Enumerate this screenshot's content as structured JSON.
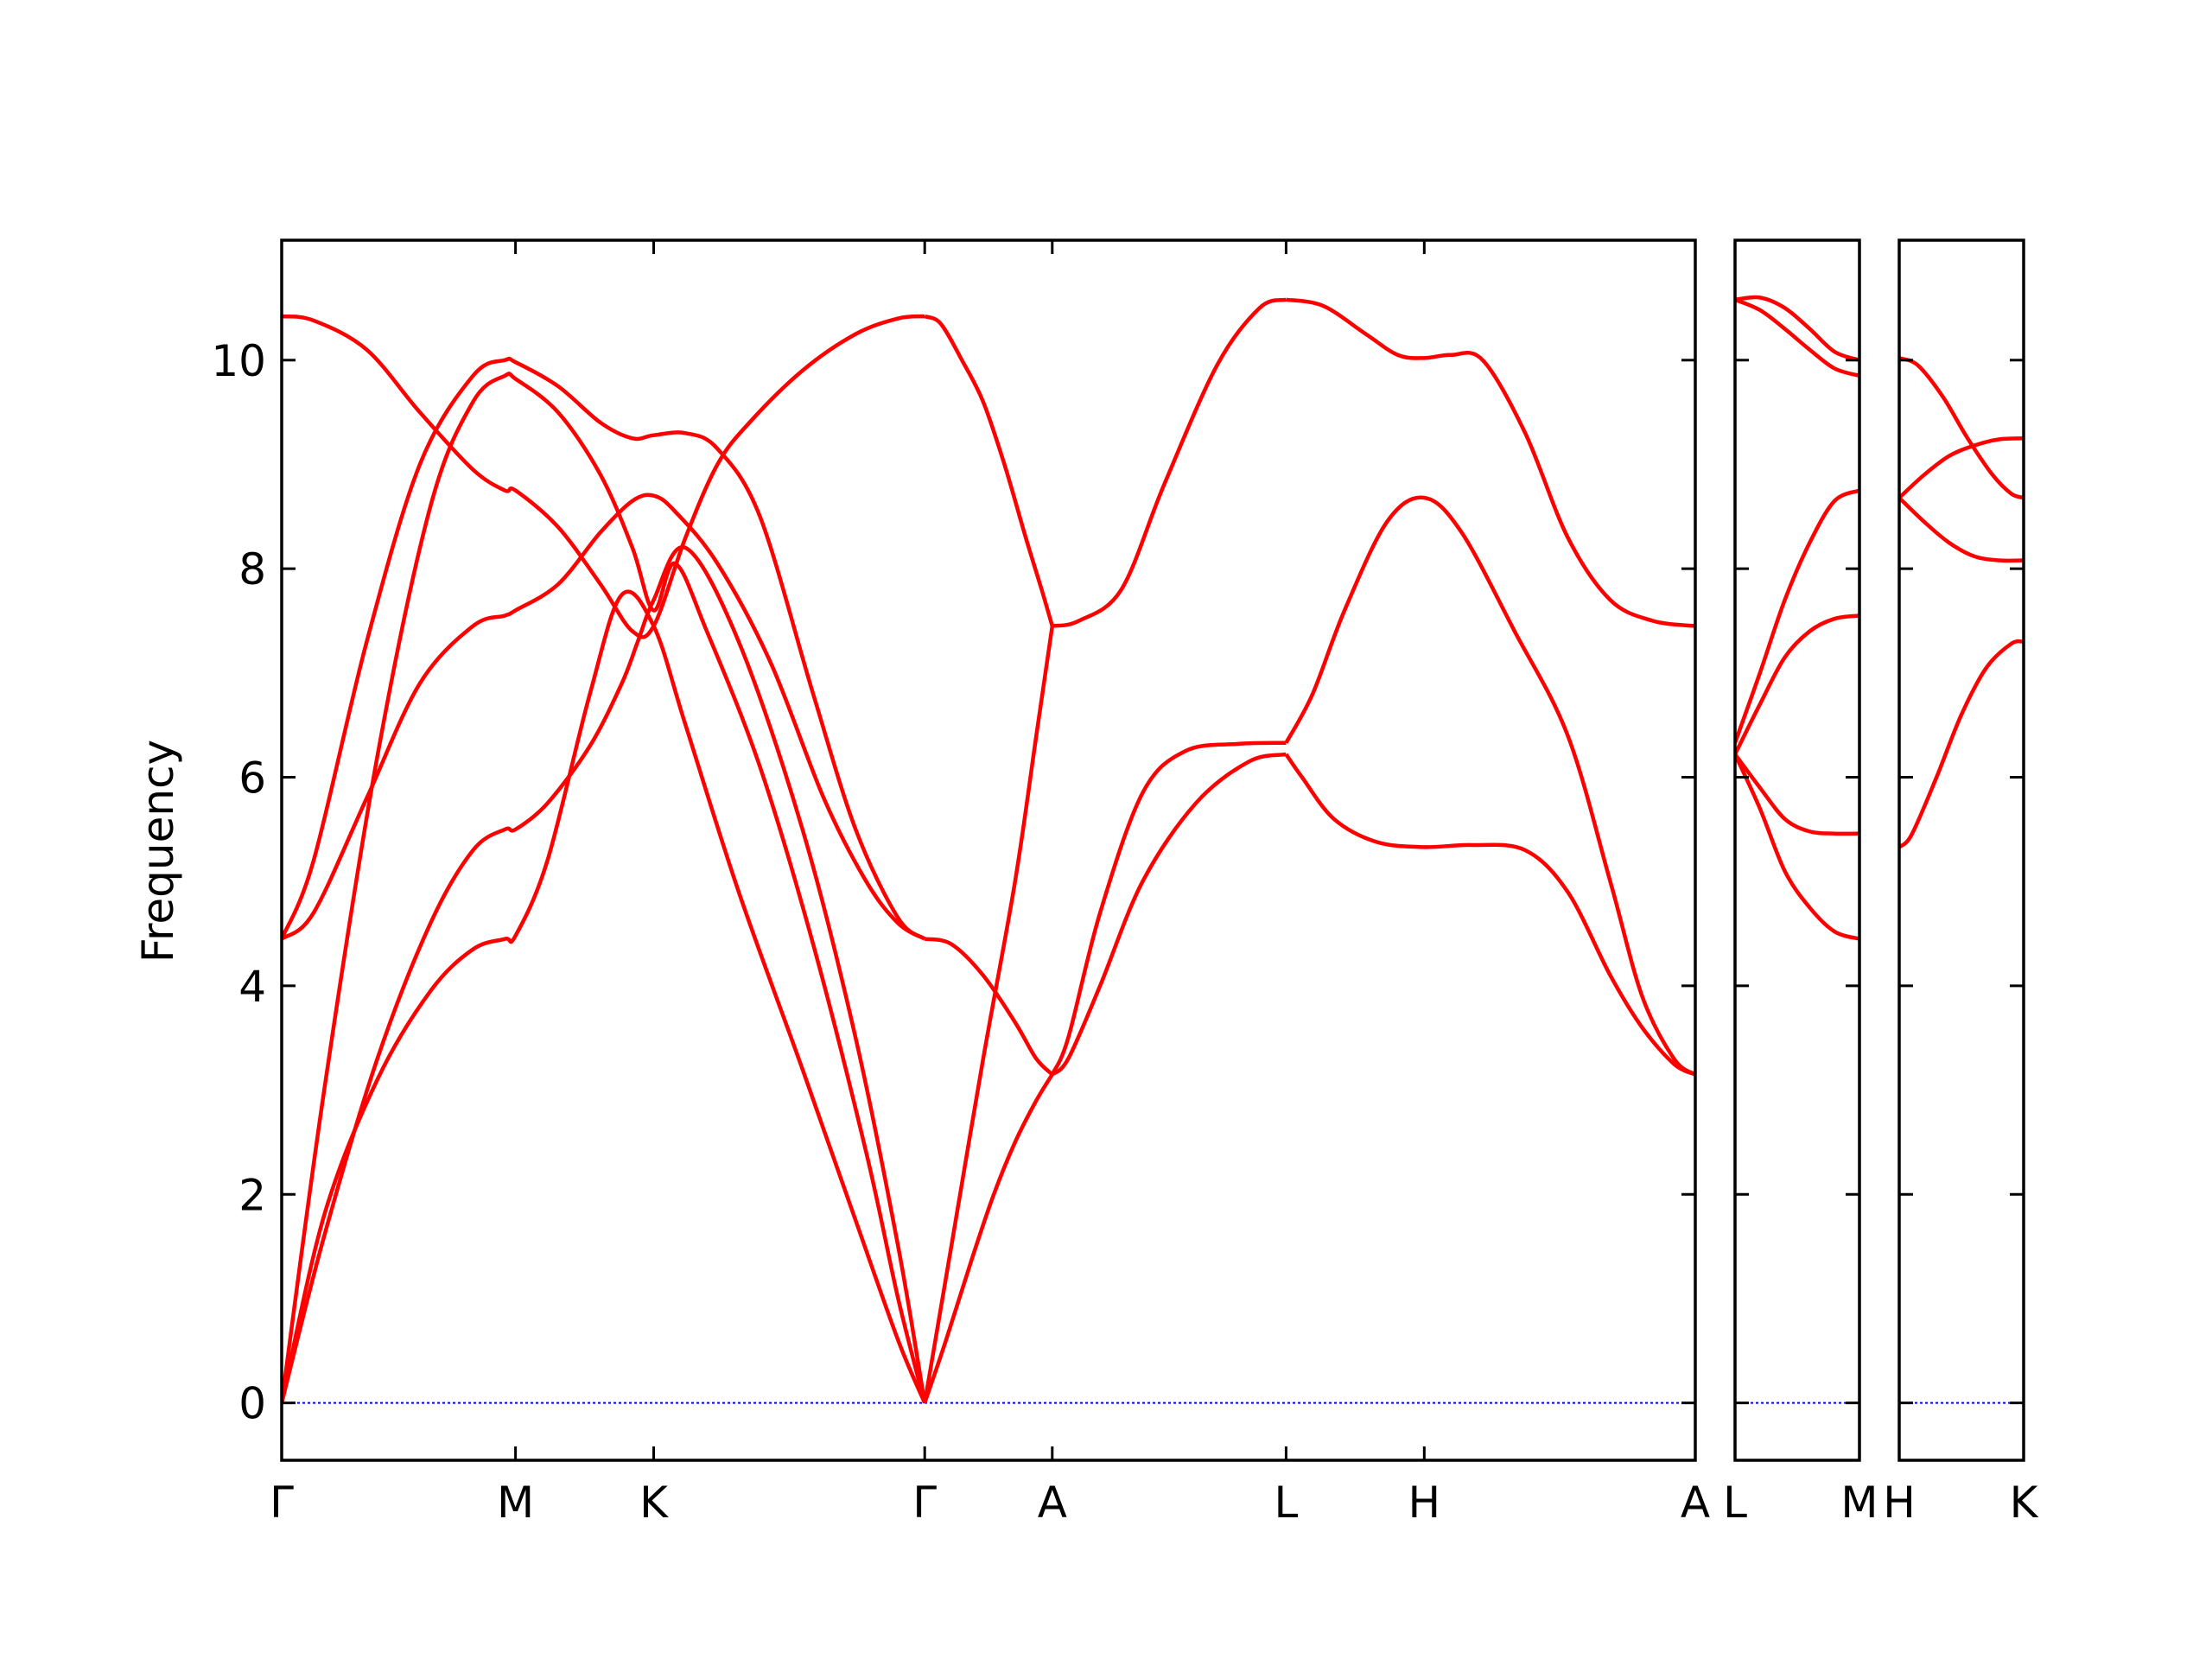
{
  "chart_data": {
    "type": "line",
    "title": "",
    "ylabel": "Frequency",
    "xlabel": "",
    "ylim": [
      -0.55,
      11.15
    ],
    "yticks": [
      0,
      2,
      4,
      6,
      8,
      10
    ],
    "grid": false,
    "legend": "none",
    "colors": {
      "bands": "#ff0000",
      "zero_line": "#0000ff",
      "axes": "#000000"
    },
    "panels": [
      {
        "name": "panel-main",
        "xlim": [
          0,
          13.3
        ],
        "xticks": [
          {
            "pos": 0,
            "label": "Γ"
          },
          {
            "pos": 2.2,
            "label": "M"
          },
          {
            "pos": 3.5,
            "label": "K"
          },
          {
            "pos": 6.05,
            "label": "Γ"
          },
          {
            "pos": 7.25,
            "label": "A"
          },
          {
            "pos": 9.45,
            "label": "L"
          },
          {
            "pos": 10.75,
            "label": "H"
          },
          {
            "pos": 13.3,
            "label": "A"
          }
        ],
        "series": [
          {
            "x": [
              0,
              0.4,
              0.9,
              1.4,
              1.8,
              2.1,
              2.2,
              2.5,
              2.9,
              3.2,
              3.5,
              3.8,
              4.3,
              4.9,
              5.4,
              5.8,
              6.05
            ],
            "y": [
              0,
              1.8,
              3.1,
              3.95,
              4.35,
              4.45,
              4.48,
              5.2,
              6.8,
              7.75,
              7.45,
              6.5,
              4.9,
              3.2,
              1.75,
              0.6,
              0
            ]
          },
          {
            "x": [
              0,
              0.4,
              0.9,
              1.4,
              1.8,
              2.1,
              2.2,
              2.5,
              2.9,
              3.2,
              3.35,
              3.5,
              3.8,
              4.3,
              4.9,
              5.4,
              5.8,
              6.05
            ],
            "y": [
              0,
              1.6,
              3.3,
              4.6,
              5.3,
              5.5,
              5.5,
              5.75,
              6.3,
              6.9,
              7.3,
              7.7,
              8.2,
              7.3,
              5.5,
              3.5,
              1.5,
              0
            ]
          },
          {
            "x": [
              0,
              0.4,
              0.9,
              1.4,
              1.8,
              2.1,
              2.2,
              2.6,
              3.0,
              3.3,
              3.5,
              3.7,
              4.0,
              4.5,
              5.0,
              5.5,
              5.8,
              6.05
            ],
            "y": [
              0,
              3.0,
              6.2,
              8.6,
              9.6,
              9.85,
              9.82,
              9.5,
              8.9,
              8.2,
              7.6,
              8.05,
              7.4,
              6.1,
              4.4,
              2.4,
              1.0,
              0
            ]
          },
          {
            "x": [
              0,
              0.3,
              0.8,
              1.3,
              1.8,
              2.1,
              2.2,
              2.6,
              3.0,
              3.3,
              3.5,
              3.7,
              4.1,
              4.6,
              5.1,
              5.5,
              5.8,
              6.05
            ],
            "y": [
              4.45,
              4.7,
              5.8,
              6.9,
              7.45,
              7.55,
              7.6,
              7.85,
              8.35,
              8.65,
              8.7,
              8.55,
              8.05,
              7.1,
              5.8,
              5.0,
              4.6,
              4.45
            ]
          },
          {
            "x": [
              0,
              0.3,
              0.8,
              1.3,
              1.8,
              2.1,
              2.2,
              2.6,
              3.0,
              3.3,
              3.5,
              3.8,
              4.1,
              4.5,
              5.0,
              5.4,
              5.8,
              6.05
            ],
            "y": [
              4.45,
              5.2,
              7.3,
              9.0,
              9.85,
              10.0,
              9.98,
              9.75,
              9.4,
              9.25,
              9.28,
              9.3,
              9.15,
              8.5,
              6.8,
              5.5,
              4.65,
              4.45
            ]
          },
          {
            "x": [
              0,
              0.3,
              0.8,
              1.3,
              1.8,
              2.1,
              2.2,
              2.6,
              3.0,
              3.3,
              3.5,
              3.8,
              4.1,
              4.4,
              4.9,
              5.4,
              5.8,
              6.05
            ],
            "y": [
              10.42,
              10.38,
              10.1,
              9.5,
              8.95,
              8.75,
              8.75,
              8.4,
              7.85,
              7.4,
              7.45,
              8.3,
              9.0,
              9.4,
              9.9,
              10.25,
              10.4,
              10.42
            ]
          },
          {
            "x": [
              6.05,
              6.25,
              6.5,
              6.7,
              6.9,
              7.1,
              7.25
            ],
            "y": [
              0,
              0.6,
              1.4,
              2.0,
              2.5,
              2.9,
              3.15
            ]
          },
          {
            "x": [
              6.05,
              6.3,
              6.6,
              6.9,
              7.1,
              7.25
            ],
            "y": [
              0,
              1.5,
              3.3,
              5.0,
              6.4,
              7.45
            ]
          },
          {
            "x": [
              6.05,
              6.3,
              6.6,
              6.9,
              7.1,
              7.25
            ],
            "y": [
              4.45,
              4.4,
              4.1,
              3.65,
              3.3,
              3.15
            ]
          },
          {
            "x": [
              6.05,
              6.2,
              6.4,
              6.6,
              6.8,
              7.0,
              7.15,
              7.25
            ],
            "y": [
              10.42,
              10.35,
              10.0,
              9.6,
              9.0,
              8.3,
              7.8,
              7.45
            ]
          },
          {
            "x": [
              7.25,
              7.4,
              7.7,
              8.1,
              8.6,
              9.1,
              9.45
            ],
            "y": [
              3.15,
              3.3,
              4.0,
              5.0,
              5.75,
              6.15,
              6.22
            ]
          },
          {
            "x": [
              7.25,
              7.4,
              7.7,
              8.1,
              8.5,
              9.0,
              9.45
            ],
            "y": [
              3.15,
              3.5,
              4.7,
              5.85,
              6.25,
              6.32,
              6.33
            ]
          },
          {
            "x": [
              7.25,
              7.5,
              7.9,
              8.3,
              8.8,
              9.2,
              9.45
            ],
            "y": [
              7.45,
              7.5,
              7.8,
              8.8,
              9.95,
              10.5,
              10.58
            ]
          },
          {
            "x": [
              9.45,
              9.6,
              9.9,
              10.3,
              10.75,
              11.2,
              11.7,
              12.1,
              12.5,
              12.8,
              13.1,
              13.3
            ],
            "y": [
              6.22,
              6.0,
              5.6,
              5.38,
              5.33,
              5.35,
              5.3,
              4.9,
              4.1,
              3.6,
              3.25,
              3.15
            ]
          },
          {
            "x": [
              9.45,
              9.7,
              10.0,
              10.4,
              10.75,
              11.1,
              11.6,
              12.1,
              12.5,
              12.8,
              13.1,
              13.3
            ],
            "y": [
              6.33,
              6.8,
              7.6,
              8.45,
              8.68,
              8.35,
              7.4,
              6.4,
              5.0,
              3.9,
              3.3,
              3.15
            ]
          },
          {
            "x": [
              9.45,
              9.8,
              10.2,
              10.5,
              10.75,
              11.0,
              11.3,
              11.7,
              12.1,
              12.5,
              12.9,
              13.3
            ],
            "y": [
              10.58,
              10.52,
              10.25,
              10.05,
              10.02,
              10.05,
              10.0,
              9.3,
              8.3,
              7.7,
              7.5,
              7.45
            ]
          }
        ]
      },
      {
        "name": "panel-lm",
        "xlim": [
          0,
          1
        ],
        "xticks": [
          {
            "pos": 0,
            "label": "L"
          },
          {
            "pos": 1,
            "label": "M"
          }
        ],
        "series": [
          {
            "x": [
              0,
              0.2,
              0.4,
              0.6,
              0.8,
              1.0
            ],
            "y": [
              6.22,
              5.7,
              5.1,
              4.75,
              4.52,
              4.45
            ]
          },
          {
            "x": [
              0,
              0.2,
              0.4,
              0.6,
              0.8,
              1.0
            ],
            "y": [
              6.22,
              5.9,
              5.6,
              5.48,
              5.46,
              5.46
            ]
          },
          {
            "x": [
              0,
              0.2,
              0.4,
              0.6,
              0.8,
              1.0
            ],
            "y": [
              6.22,
              6.7,
              7.15,
              7.4,
              7.52,
              7.55
            ]
          },
          {
            "x": [
              0,
              0.2,
              0.4,
              0.6,
              0.8,
              1.0
            ],
            "y": [
              6.33,
              7.0,
              7.7,
              8.25,
              8.65,
              8.75
            ]
          },
          {
            "x": [
              0,
              0.2,
              0.4,
              0.6,
              0.8,
              1.0
            ],
            "y": [
              10.58,
              10.48,
              10.3,
              10.1,
              9.92,
              9.85
            ]
          },
          {
            "x": [
              0,
              0.2,
              0.4,
              0.6,
              0.8,
              1.0
            ],
            "y": [
              10.58,
              10.6,
              10.5,
              10.3,
              10.08,
              10.0
            ]
          }
        ]
      },
      {
        "name": "panel-hk",
        "xlim": [
          0,
          1
        ],
        "xticks": [
          {
            "pos": 0,
            "label": "H"
          },
          {
            "pos": 1,
            "label": "K"
          }
        ],
        "series": [
          {
            "x": [
              0,
              0.1,
              0.3,
              0.5,
              0.7,
              0.9,
              1.0
            ],
            "y": [
              5.33,
              5.45,
              6.0,
              6.6,
              7.05,
              7.28,
              7.3
            ]
          },
          {
            "x": [
              0,
              0.2,
              0.4,
              0.6,
              0.8,
              1.0
            ],
            "y": [
              8.68,
              8.45,
              8.25,
              8.12,
              8.08,
              8.08
            ]
          },
          {
            "x": [
              0,
              0.2,
              0.4,
              0.6,
              0.8,
              1.0
            ],
            "y": [
              8.68,
              8.9,
              9.08,
              9.18,
              9.24,
              9.25
            ]
          },
          {
            "x": [
              0,
              0.15,
              0.35,
              0.55,
              0.75,
              0.9,
              1.0
            ],
            "y": [
              10.02,
              9.95,
              9.65,
              9.25,
              8.9,
              8.72,
              8.68
            ]
          }
        ]
      }
    ]
  }
}
